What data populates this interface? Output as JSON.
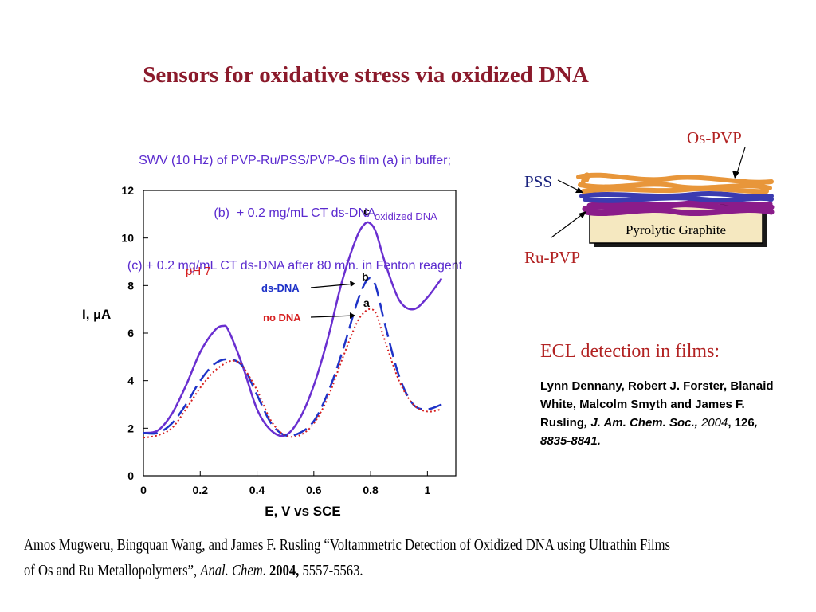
{
  "slide": {
    "title": "Sensors for oxidative stress via oxidized DNA"
  },
  "chart_data": {
    "type": "line",
    "title_lines": [
      "SWV (10 Hz) of PVP-Ru/PSS/PVP-Os film (a) in buffer;",
      "(b)  + 0.2 mg/mL CT ds-DNA",
      "(c) + 0.2 mg/mL CT ds-DNA after 80 min. in Fenton reagent"
    ],
    "xlabel": "E, V vs SCE",
    "ylabel": "I, µA",
    "xlim": [
      0,
      1.1
    ],
    "ylim": [
      0,
      12
    ],
    "x_ticks": [
      "0",
      "0.2",
      "0.4",
      "0.6",
      "0.8",
      "1"
    ],
    "y_ticks": [
      "0",
      "2",
      "4",
      "6",
      "8",
      "10",
      "12"
    ],
    "grid": false,
    "series": [
      {
        "name": "c",
        "color": "#6a2fd0",
        "style": "solid",
        "x": [
          0,
          0.05,
          0.1,
          0.15,
          0.2,
          0.25,
          0.28,
          0.3,
          0.35,
          0.4,
          0.45,
          0.5,
          0.55,
          0.6,
          0.65,
          0.7,
          0.75,
          0.78,
          0.8,
          0.82,
          0.85,
          0.9,
          0.95,
          1.0,
          1.05
        ],
        "y": [
          1.8,
          1.9,
          2.6,
          3.8,
          5.2,
          6.1,
          6.3,
          6.1,
          4.6,
          2.8,
          1.9,
          1.7,
          2.4,
          3.8,
          5.8,
          8.2,
          10.0,
          10.6,
          10.6,
          10.2,
          9.0,
          7.4,
          7.0,
          7.5,
          8.3
        ]
      },
      {
        "name": "b",
        "color": "#1f33c8",
        "style": "dashed",
        "x": [
          0,
          0.05,
          0.1,
          0.15,
          0.2,
          0.25,
          0.3,
          0.35,
          0.4,
          0.45,
          0.5,
          0.55,
          0.6,
          0.65,
          0.7,
          0.75,
          0.78,
          0.8,
          0.82,
          0.85,
          0.9,
          0.95,
          1.0,
          1.05
        ],
        "y": [
          1.8,
          1.8,
          2.2,
          3.0,
          4.0,
          4.7,
          4.9,
          4.6,
          3.4,
          2.2,
          1.7,
          1.8,
          2.3,
          3.5,
          5.2,
          7.2,
          8.1,
          8.3,
          7.9,
          6.4,
          4.2,
          3.0,
          2.8,
          3.0
        ]
      },
      {
        "name": "a",
        "color": "#d62020",
        "style": "dotted",
        "x": [
          0,
          0.05,
          0.1,
          0.15,
          0.2,
          0.25,
          0.3,
          0.33,
          0.35,
          0.4,
          0.45,
          0.5,
          0.55,
          0.6,
          0.65,
          0.7,
          0.75,
          0.78,
          0.8,
          0.82,
          0.85,
          0.9,
          0.95,
          1.0,
          1.05
        ],
        "y": [
          1.6,
          1.7,
          2.0,
          2.8,
          3.7,
          4.4,
          4.8,
          4.8,
          4.6,
          3.6,
          2.3,
          1.7,
          1.7,
          2.2,
          3.3,
          4.9,
          6.4,
          6.9,
          7.0,
          6.8,
          5.7,
          4.0,
          3.0,
          2.7,
          2.8
        ]
      }
    ],
    "annotations": {
      "ph": "pH 7",
      "ds_dna": "ds-DNA",
      "no_dna": "no DNA",
      "oxidized_dna": "oxidized DNA",
      "label_a": "a",
      "label_b": "b",
      "label_c": "c"
    }
  },
  "diagram": {
    "os_pvp": "Os-PVP",
    "pss": "PSS",
    "ru_pvp": "Ru-PVP",
    "substrate": "Pyrolytic Graphite",
    "colors": {
      "os": "#e8963a",
      "pss": "#3b3bb0",
      "ru": "#8a1c8a",
      "substrate": "#f5e8c0",
      "label": "#b22222",
      "pss_label": "#1a237e"
    }
  },
  "ecl": {
    "heading": "ECL detection in films:",
    "authors": "Lynn Dennany, Robert J. Forster, Blanaid White, Malcolm Smyth and James F. Rusling",
    "journal": ", J. Am. Chem. Soc.,",
    "year": "2004",
    "volume": ", 126",
    "pages": ", 8835-8841."
  },
  "citation": {
    "text": "Amos Mugweru, Bingquan  Wang, and James F. Rusling “Voltammetric Detection of Oxidized DNA  using Ultrathin Films of Os and Ru Metallopolymers”, ",
    "journal": "Anal. Chem",
    "sep": ". ",
    "year": "2004,",
    "pages": "  5557-5563."
  }
}
